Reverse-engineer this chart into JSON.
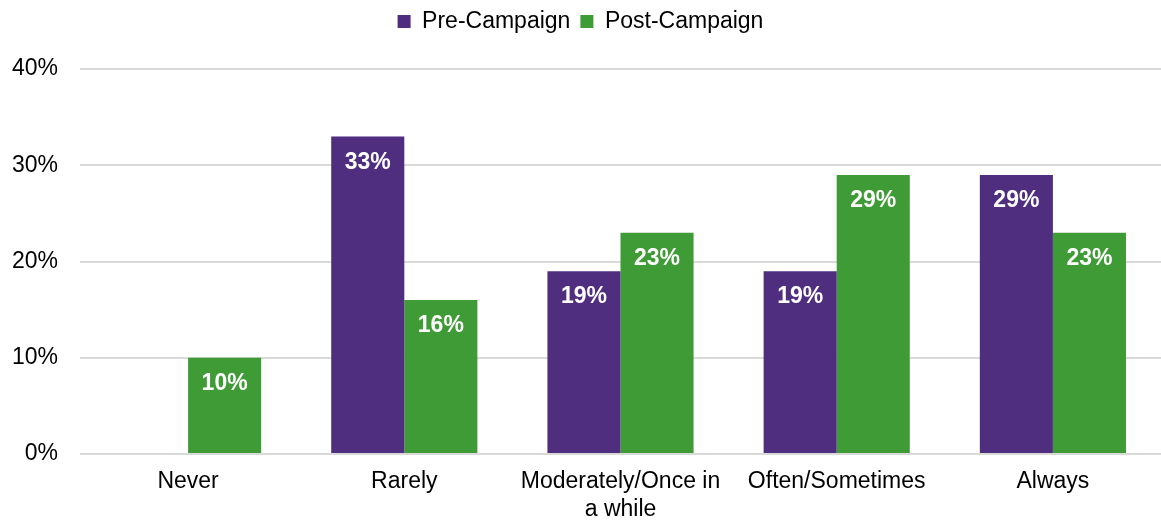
{
  "chart_data": {
    "type": "bar",
    "categories": [
      "Never",
      "Rarely",
      "Moderately/Once in a while",
      "Often/Sometimes",
      "Always"
    ],
    "series": [
      {
        "name": "Pre-Campaign",
        "color": "#4f2d7f",
        "values": [
          null,
          33,
          19,
          19,
          29
        ],
        "value_labels": [
          null,
          "33%",
          "19%",
          "19%",
          "29%"
        ]
      },
      {
        "name": "Post-Campaign",
        "color": "#3f9b35",
        "values": [
          10,
          16,
          23,
          29,
          23
        ],
        "value_labels": [
          "10%",
          "16%",
          "23%",
          "29%",
          "23%"
        ]
      }
    ],
    "ylim": [
      0,
      40
    ],
    "yticks": [
      {
        "value": 0,
        "label": "0%"
      },
      {
        "value": 10,
        "label": "10%"
      },
      {
        "value": 20,
        "label": "20%"
      },
      {
        "value": 30,
        "label": "30%"
      },
      {
        "value": 40,
        "label": "40%"
      }
    ],
    "grid": "y",
    "legend": "top"
  }
}
